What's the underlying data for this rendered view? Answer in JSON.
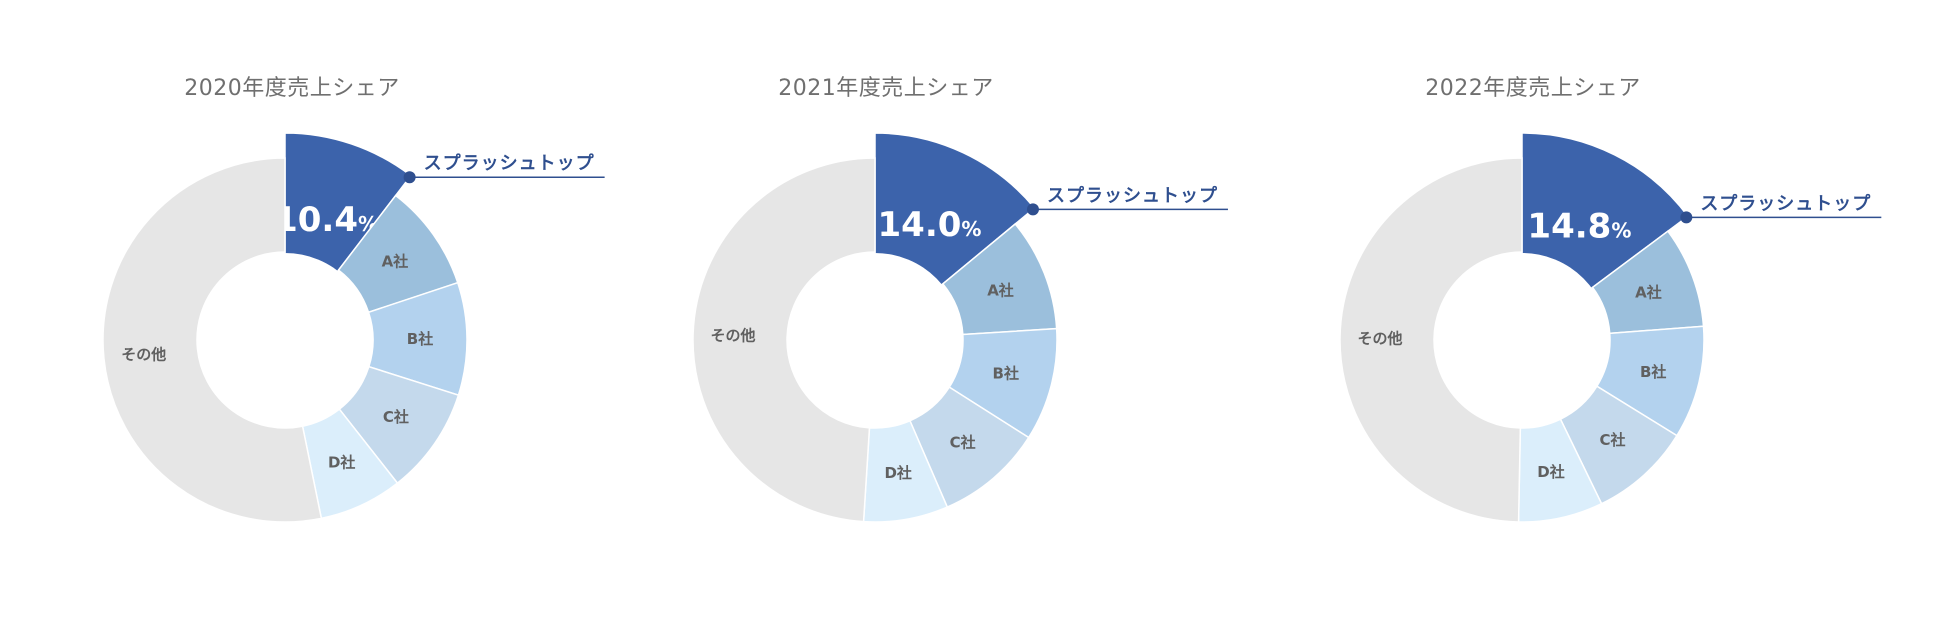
{
  "colors": {
    "highlight": "#3c63ab",
    "A": "#9bbfdc",
    "B": "#b3d2ee",
    "C": "#c4d9ec",
    "D": "#dbeefb",
    "other": "#e6e6e6",
    "title": "#6f6f6f",
    "callout": "#2f4f8f"
  },
  "chart_data": [
    {
      "type": "pie",
      "title": "2020年度売上シェア",
      "labels": [
        "スプラッシュトップ",
        "A社",
        "B社",
        "C社",
        "D社",
        "その他"
      ],
      "values": [
        10.4,
        9.5,
        10.0,
        9.5,
        7.4,
        53.2
      ],
      "highlight_label": "10.4",
      "highlight_unit": "%"
    },
    {
      "type": "pie",
      "title": "2021年度売上シェア",
      "labels": [
        "スプラッシュトップ",
        "A社",
        "B社",
        "C社",
        "D社",
        "その他"
      ],
      "values": [
        14.0,
        10.0,
        10.0,
        9.5,
        7.5,
        49.0
      ],
      "highlight_label": "14.0",
      "highlight_unit": "%"
    },
    {
      "type": "pie",
      "title": "2022年度売上シェア",
      "labels": [
        "スプラッシュトップ",
        "A社",
        "B社",
        "C社",
        "D社",
        "その他"
      ],
      "values": [
        14.8,
        9.0,
        10.0,
        9.0,
        7.5,
        49.7
      ],
      "highlight_label": "14.8",
      "highlight_unit": "%"
    }
  ]
}
